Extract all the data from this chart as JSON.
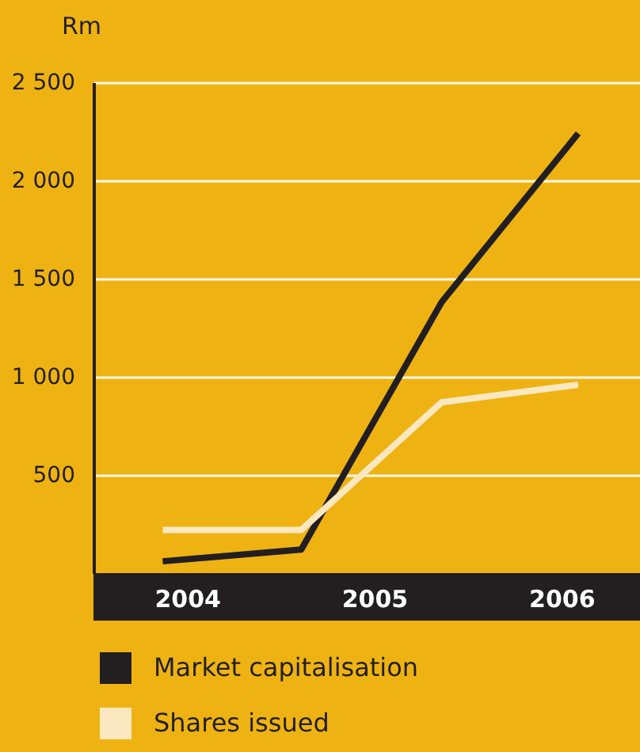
{
  "chart_data": {
    "type": "line",
    "ylabel": "Rm",
    "x": [
      2003.87,
      2004.61,
      2005.36,
      2006.09
    ],
    "series": [
      {
        "name": "Market capitalisation",
        "color": "#231f20",
        "values": [
          60,
          120,
          1380,
          2240
        ]
      },
      {
        "name": "Shares issued",
        "color": "#fbe8c0",
        "values": [
          220,
          220,
          870,
          960
        ]
      }
    ],
    "xlim": [
      2003.5,
      2006.42
    ],
    "xticks": [
      2004,
      2005,
      2006
    ],
    "ylim": [
      0,
      2500
    ],
    "yticks": [
      {
        "value": 500,
        "label": "500"
      },
      {
        "value": 1000,
        "label": "1 000"
      },
      {
        "value": 1500,
        "label": "1 500"
      },
      {
        "value": 2000,
        "label": "2 000"
      },
      {
        "value": 2500,
        "label": "2 500"
      }
    ],
    "grid": "y",
    "legend": "bottom",
    "marker": "none",
    "line_style": "solid"
  }
}
